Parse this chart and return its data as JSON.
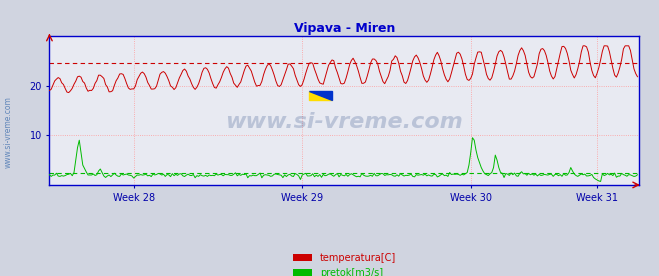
{
  "title": "Vipava - Miren",
  "title_color": "#0000cc",
  "bg_color": "#d0d4e0",
  "plot_bg_color": "#e8eaf2",
  "grid_color": "#ff9999",
  "axis_color": "#0000cc",
  "tick_color": "#0000aa",
  "ylabel_ticks": [
    10,
    20
  ],
  "xlim": [
    0,
    336
  ],
  "ylim": [
    0,
    30
  ],
  "dashed_red_y": 24.5,
  "dashed_green_y": 2.5,
  "week_ticks": [
    48,
    144,
    240,
    312
  ],
  "week_labels": [
    "Week 28",
    "Week 29",
    "Week 30",
    "Week 31"
  ],
  "temp_color": "#cc0000",
  "flow_color": "#00bb00",
  "watermark": "www.si-vreme.com",
  "watermark_color": "#1a3a7a",
  "side_watermark": "www.si-vreme.com",
  "side_watermark_color": "#3366aa",
  "legend_items": [
    {
      "label": "temperatura[C]",
      "color": "#cc0000"
    },
    {
      "label": "pretok[m3/s]",
      "color": "#00bb00"
    }
  ]
}
